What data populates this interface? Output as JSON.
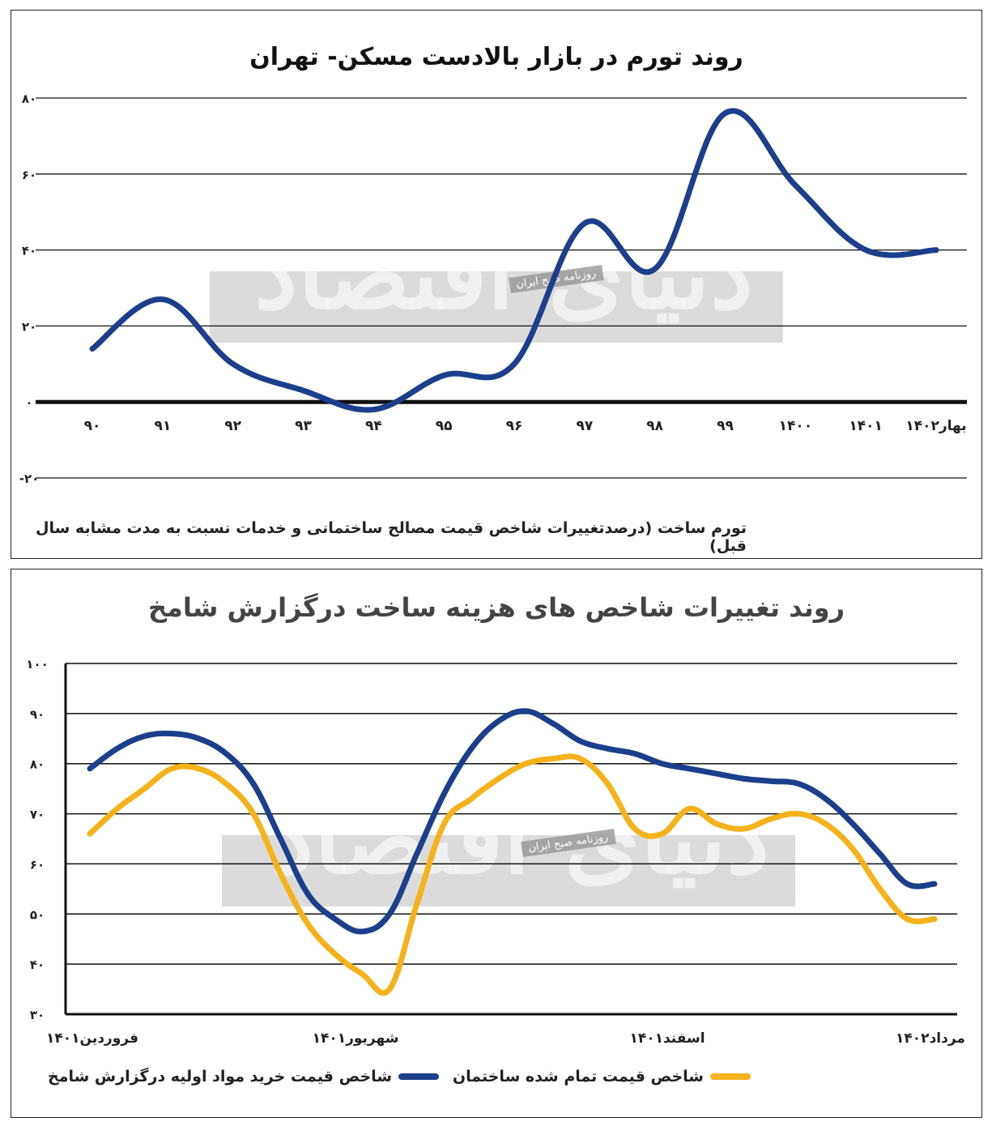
{
  "charts": {
    "top": {
      "title": "روند تورم در بازار بالادست مسکن- تهران",
      "footnote": "تورم ساخت (درصدتغییرات شاخص قیمت مصالح ساختمانی و خدمات نسبت به مدت مشابه سال قبل)",
      "y_ticks": [
        "۸۰",
        "۶۰",
        "۴۰",
        "۲۰",
        "۰",
        "-۲۰"
      ]
    },
    "bottom": {
      "title": "روند تغییرات شاخص های هزینه ساخت درگزارش شامخ",
      "y_ticks": [
        "۱۰۰",
        "۹۰",
        "۸۰",
        "۷۰",
        "۶۰",
        "۵۰",
        "۴۰",
        "۳۰"
      ],
      "x_ticks": [
        "فروردین۱۴۰۱",
        "شهریور۱۴۰۱",
        "اسفند۱۴۰۱",
        "مرداد۱۴۰۲"
      ],
      "legend": {
        "blue": "شاخص قیمت خرید مواد اولیه درگزارش شامخ",
        "orange": "شاخص قیمت تمام شده ساختمان"
      }
    }
  },
  "watermark": {
    "brand": "دنیای اقتصاد",
    "tagline": "روزنامه صبح ایران"
  },
  "colors": {
    "blue": "#1c3f8c",
    "orange": "#f5b21b",
    "grid": "#111111"
  },
  "chart_data": [
    {
      "type": "line",
      "title": "روند تورم در بازار بالادست مسکن- تهران",
      "categories": [
        "۹۰",
        "۹۱",
        "۹۲",
        "۹۳",
        "۹۴",
        "۹۵",
        "۹۶",
        "۹۷",
        "۹۸",
        "۹۹",
        "۱۴۰۰",
        "۱۴۰۱",
        "بهار۱۴۰۲"
      ],
      "series": [
        {
          "values": [
            14,
            27,
            10,
            3,
            -2,
            7,
            10,
            47,
            35,
            76,
            57,
            40,
            40
          ]
        }
      ],
      "ylim": [
        -20,
        80
      ],
      "grid": true
    },
    {
      "type": "line",
      "title": "روند تغییرات شاخص های هزینه ساخت درگزارش شامخ",
      "categories": [
        "فروردین۱۴۰۱",
        "شهریور۱۴۰۱",
        "اسفند۱۴۰۱",
        "مرداد۱۴۰۲"
      ],
      "x": [
        1,
        1.5,
        2,
        2.5,
        3,
        3.5,
        4,
        4.5,
        5,
        5.5,
        6,
        6.5,
        7,
        7.5,
        8,
        8.5,
        9,
        9.5,
        10,
        10.5,
        11,
        11.5,
        12,
        12.5,
        13,
        13.5,
        14,
        14.5,
        15,
        15.5,
        16,
        16.5
      ],
      "series": [
        {
          "name": "شاخص قیمت خرید مواد اولیه درگزارش شامخ",
          "values": [
            79,
            83,
            85.5,
            86,
            85,
            82,
            76,
            65,
            54,
            49,
            46.5,
            50,
            62,
            74,
            83,
            88.5,
            90.5,
            88,
            84.5,
            83,
            82,
            80,
            79,
            78,
            77,
            76.5,
            76,
            73,
            68,
            62,
            56,
            56
          ]
        },
        {
          "name": "شاخص قیمت تمام شده ساختمان",
          "values": [
            66,
            71,
            75,
            79,
            79,
            76,
            70,
            58,
            48,
            42,
            38,
            35,
            52,
            68,
            73,
            77,
            80,
            81,
            81,
            76,
            67,
            66,
            71,
            68,
            67,
            69,
            70,
            68,
            63,
            55,
            49,
            49
          ]
        }
      ],
      "ylim": [
        30,
        100
      ],
      "legend": "bottom",
      "grid": true
    }
  ]
}
